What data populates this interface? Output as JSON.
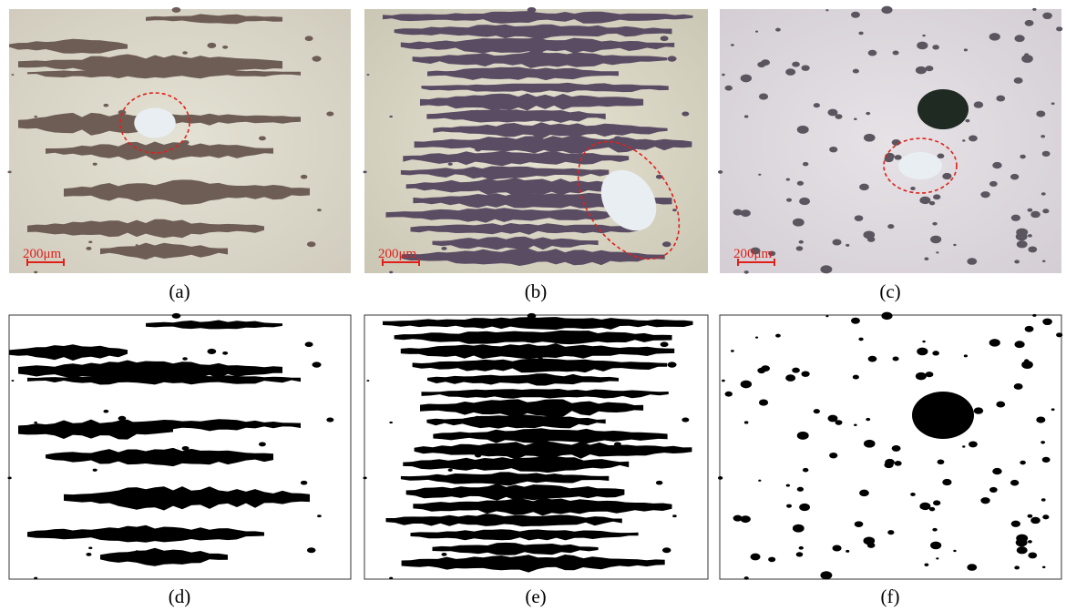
{
  "panels": [
    {
      "label": "(a)",
      "scale_bar": "200μm"
    },
    {
      "label": "(b)",
      "scale_bar": "200μm"
    },
    {
      "label": "(c)",
      "scale_bar": "200μm"
    },
    {
      "label": "(d)"
    },
    {
      "label": "(e)"
    },
    {
      "label": "(f)"
    }
  ]
}
